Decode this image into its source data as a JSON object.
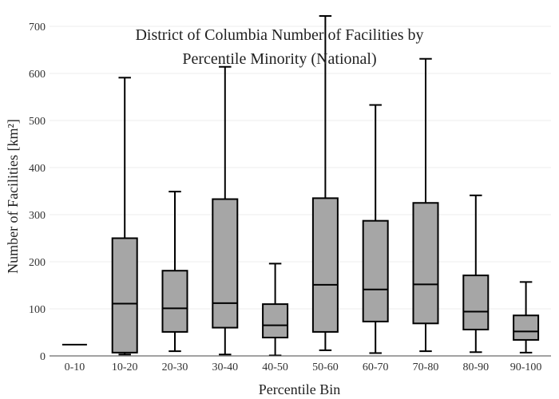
{
  "chart_data": {
    "type": "box",
    "title_lines": [
      "District of Columbia Number of Facilities by",
      "Percentile Minority (National)"
    ],
    "xlabel": "Percentile Bin",
    "ylabel": "Number of Facilities  [km²]",
    "ylim": [
      0,
      700
    ],
    "yticks": [
      0,
      100,
      200,
      300,
      400,
      500,
      600,
      700
    ],
    "grid": true,
    "categories": [
      "0-10",
      "10-20",
      "20-30",
      "30-40",
      "40-50",
      "50-60",
      "60-70",
      "70-80",
      "80-90",
      "90-100"
    ],
    "boxes": [
      {
        "min": 24,
        "q1": 24,
        "median": 24,
        "q3": 24,
        "max": 24
      },
      {
        "min": 3,
        "q1": 7,
        "median": 111,
        "q3": 250,
        "max": 591
      },
      {
        "min": 10,
        "q1": 51,
        "median": 101,
        "q3": 181,
        "max": 349
      },
      {
        "min": 3,
        "q1": 60,
        "median": 112,
        "q3": 333,
        "max": 614
      },
      {
        "min": 1,
        "q1": 39,
        "median": 65,
        "q3": 110,
        "max": 196
      },
      {
        "min": 12,
        "q1": 51,
        "median": 151,
        "q3": 335,
        "max": 722
      },
      {
        "min": 6,
        "q1": 73,
        "median": 141,
        "q3": 287,
        "max": 533
      },
      {
        "min": 10,
        "q1": 69,
        "median": 152,
        "q3": 325,
        "max": 631
      },
      {
        "min": 8,
        "q1": 56,
        "median": 94,
        "q3": 171,
        "max": 341
      },
      {
        "min": 7,
        "q1": 34,
        "median": 52,
        "q3": 86,
        "max": 157
      }
    ]
  }
}
